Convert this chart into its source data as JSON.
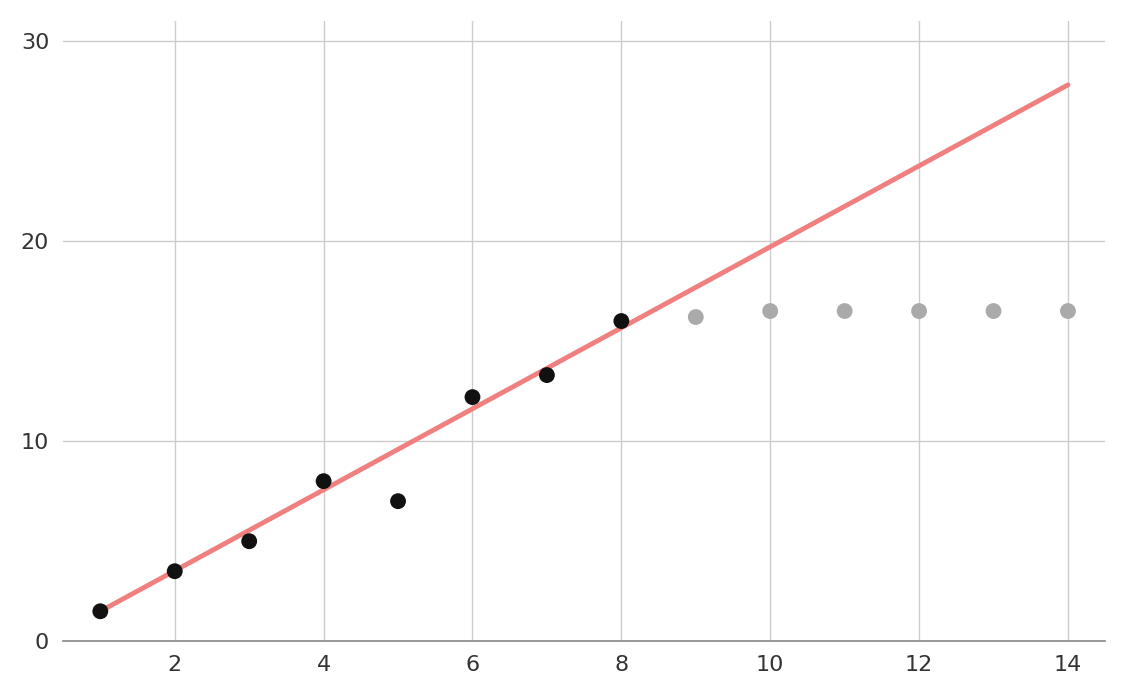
{
  "black_x": [
    1,
    2,
    3,
    4,
    5,
    6,
    7,
    8
  ],
  "black_y": [
    1.5,
    3.5,
    5.0,
    8.0,
    7.0,
    12.2,
    13.3,
    16.0
  ],
  "gray_x": [
    9,
    10,
    11,
    12,
    13,
    14
  ],
  "gray_y": [
    16.2,
    16.5,
    16.5,
    16.5,
    16.5,
    16.5
  ],
  "line_x": [
    1,
    14
  ],
  "line_y": [
    1.5,
    27.8
  ],
  "black_color": "#111111",
  "gray_color": "#aaaaaa",
  "line_color": "#f08080",
  "bg_color": "#ffffff",
  "grid_color": "#cccccc",
  "xlim": [
    0.5,
    14.5
  ],
  "ylim": [
    0,
    31
  ],
  "xticks": [
    2,
    4,
    6,
    8,
    10,
    12,
    14
  ],
  "yticks": [
    0,
    10,
    20,
    30
  ],
  "marker_size": 130,
  "line_width": 3.5,
  "tick_labelsize": 16,
  "spine_color": "#888888"
}
